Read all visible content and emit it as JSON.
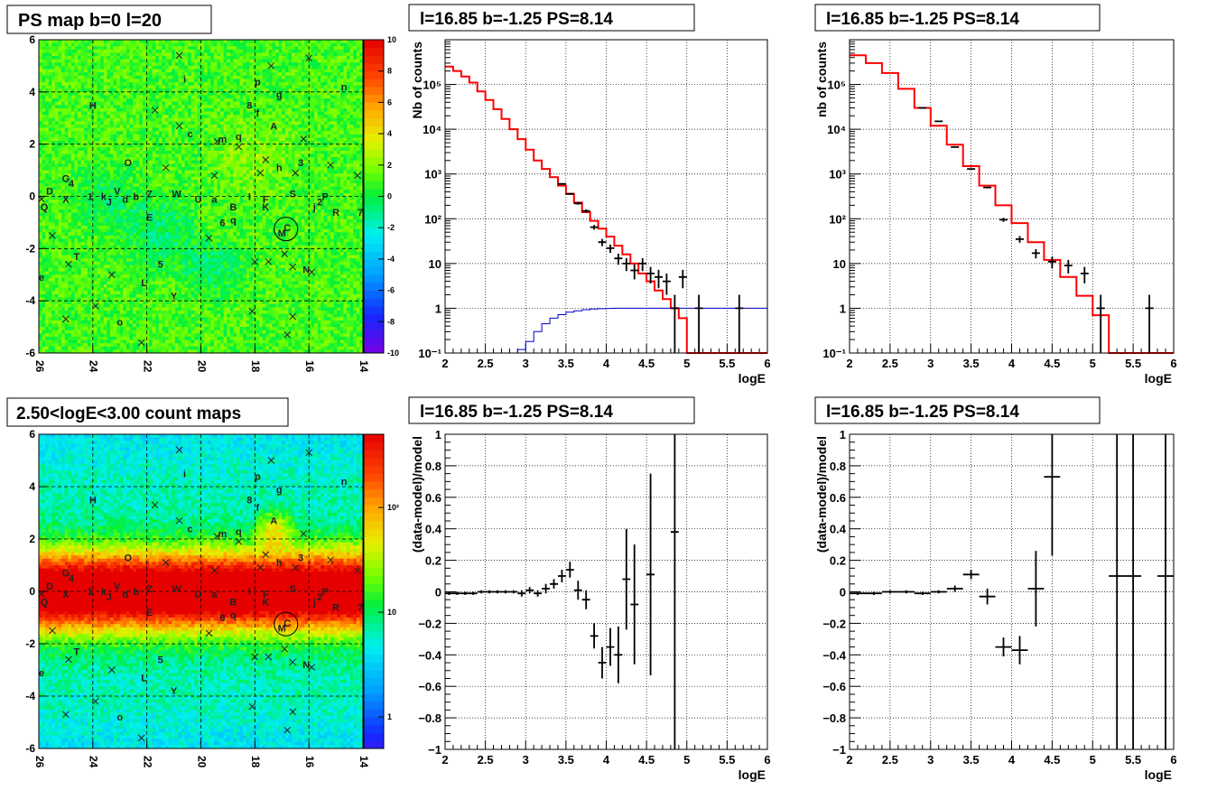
{
  "titles": {
    "map_ps": "PS map b=0 l=20",
    "map_counts": "2.50<logE<3.00 count maps",
    "spec_left": "l=16.85 b=-1.25 PS=8.14",
    "spec_right": "l=16.85 b=-1.25 PS=8.14",
    "res_left": "l=16.85 b=-1.25 PS=8.14",
    "res_right": "l=16.85 b=-1.25 PS=8.14"
  },
  "colors": {
    "model_line": "#ff0000",
    "background_line": "#0000cc",
    "data_points": "#000000",
    "frame": "#000000"
  },
  "chart_data": [
    {
      "id": "map_ps",
      "type": "heatmap",
      "title": "PS map b=0 l=20",
      "xlim": [
        26,
        14
      ],
      "ylim": [
        -6,
        6
      ],
      "x_ticks": [
        "26",
        "24",
        "22",
        "20",
        "18",
        "16",
        "14"
      ],
      "y_ticks": [
        "-6",
        "-4",
        "-2",
        "0",
        "2",
        "4",
        "6"
      ],
      "colorbar_ticks": [
        "-10",
        "-8",
        "-6",
        "-4",
        "-2",
        "0",
        "2",
        "4",
        "6",
        "8",
        "10"
      ],
      "colorbar_range": [
        -10,
        10
      ],
      "sources": [
        {
          "label": "H",
          "x": 24.0,
          "y": 3.5
        },
        {
          "label": "i",
          "x": 20.6,
          "y": 4.5
        },
        {
          "label": "p",
          "x": 17.9,
          "y": 4.4
        },
        {
          "label": "n",
          "x": 14.7,
          "y": 4.2
        },
        {
          "label": "g",
          "x": 17.1,
          "y": 3.9
        },
        {
          "label": "8",
          "x": 18.2,
          "y": 3.5
        },
        {
          "label": "f",
          "x": 17.9,
          "y": 3.2
        },
        {
          "label": "A",
          "x": 17.3,
          "y": 2.7
        },
        {
          "label": "c",
          "x": 20.4,
          "y": 2.4
        },
        {
          "label": "m",
          "x": 19.2,
          "y": 2.2
        },
        {
          "label": "q",
          "x": 18.6,
          "y": 2.3
        },
        {
          "label": "O",
          "x": 22.7,
          "y": 1.3
        },
        {
          "label": "h",
          "x": 17.1,
          "y": 1.1
        },
        {
          "label": "3",
          "x": 16.3,
          "y": 1.3
        },
        {
          "label": "G",
          "x": 25.0,
          "y": 0.7
        },
        {
          "label": "4",
          "x": 24.8,
          "y": 0.5
        },
        {
          "label": "D",
          "x": 25.6,
          "y": 0.2
        },
        {
          "label": "X",
          "x": 25.0,
          "y": -0.1
        },
        {
          "label": "1",
          "x": 24.1,
          "y": 0.0
        },
        {
          "label": "k",
          "x": 23.6,
          "y": 0.0
        },
        {
          "label": "J",
          "x": 23.4,
          "y": -0.2
        },
        {
          "label": "V",
          "x": 23.1,
          "y": 0.2
        },
        {
          "label": "d",
          "x": 22.8,
          "y": -0.1
        },
        {
          "label": "b",
          "x": 22.4,
          "y": 0.0
        },
        {
          "label": "Z",
          "x": 21.9,
          "y": 0.1
        },
        {
          "label": "W",
          "x": 20.9,
          "y": 0.1
        },
        {
          "label": "U",
          "x": 20.1,
          "y": -0.1
        },
        {
          "label": "a",
          "x": 19.5,
          "y": -0.1
        },
        {
          "label": "I",
          "x": 18.2,
          "y": 0.0
        },
        {
          "label": "F",
          "x": 17.6,
          "y": -0.1
        },
        {
          "label": "K",
          "x": 17.6,
          "y": -0.4
        },
        {
          "label": "S",
          "x": 16.6,
          "y": 0.1
        },
        {
          "label": "j",
          "x": 15.8,
          "y": -0.4
        },
        {
          "label": "2",
          "x": 15.6,
          "y": -0.2
        },
        {
          "label": "P",
          "x": 15.4,
          "y": 0.0
        },
        {
          "label": "R",
          "x": 15.0,
          "y": -0.6
        },
        {
          "label": "7",
          "x": 14.1,
          "y": -0.6
        },
        {
          "label": "Q",
          "x": 25.8,
          "y": -0.4
        },
        {
          "label": "B",
          "x": 18.8,
          "y": -0.4
        },
        {
          "label": "E",
          "x": 21.9,
          "y": -0.8
        },
        {
          "label": "6",
          "x": 19.2,
          "y": -1.0
        },
        {
          "label": "q",
          "x": 18.8,
          "y": -0.9
        },
        {
          "label": "C",
          "x": 16.8,
          "y": -1.2
        },
        {
          "label": "M",
          "x": 17.0,
          "y": -1.4
        },
        {
          "label": "T",
          "x": 24.6,
          "y": -2.3
        },
        {
          "label": "5",
          "x": 21.5,
          "y": -2.6
        },
        {
          "label": "N",
          "x": 16.1,
          "y": -2.8
        },
        {
          "label": "e",
          "x": 25.9,
          "y": -3.1
        },
        {
          "label": "L",
          "x": 22.1,
          "y": -3.3
        },
        {
          "label": "Y",
          "x": 21.0,
          "y": -3.8
        },
        {
          "label": "o",
          "x": 23.0,
          "y": -4.8
        }
      ],
      "crosses": [
        [
          20.8,
          5.4
        ],
        [
          17.4,
          5.0
        ],
        [
          16.0,
          5.3
        ],
        [
          21.7,
          3.3
        ],
        [
          20.8,
          2.7
        ],
        [
          19.4,
          2.1
        ],
        [
          18.6,
          1.9
        ],
        [
          17.6,
          1.4
        ],
        [
          16.2,
          2.2
        ],
        [
          15.2,
          1.2
        ],
        [
          14.2,
          0.8
        ],
        [
          21.3,
          1.1
        ],
        [
          19.5,
          0.8
        ],
        [
          17.8,
          0.9
        ],
        [
          16.5,
          0.9
        ],
        [
          25.9,
          -0.1
        ],
        [
          24.9,
          -2.6
        ],
        [
          25.5,
          -1.5
        ],
        [
          23.3,
          -3.0
        ],
        [
          19.7,
          -1.6
        ],
        [
          18.0,
          -2.5
        ],
        [
          17.5,
          -2.5
        ],
        [
          16.9,
          -2.2
        ],
        [
          16.6,
          -2.7
        ],
        [
          15.9,
          -2.9
        ],
        [
          18.1,
          -4.4
        ],
        [
          16.6,
          -4.6
        ],
        [
          16.8,
          -5.3
        ],
        [
          25.0,
          -4.7
        ],
        [
          23.9,
          -4.2
        ],
        [
          22.2,
          -5.6
        ]
      ],
      "circled_source": {
        "x": 16.85,
        "y": -1.25
      }
    },
    {
      "id": "map_counts",
      "type": "heatmap",
      "title": "2.50<logE<3.00 count maps",
      "xlim": [
        26,
        14
      ],
      "ylim": [
        -6,
        6
      ],
      "x_ticks": [
        "26",
        "24",
        "22",
        "20",
        "18",
        "16",
        "14"
      ],
      "y_ticks": [
        "-6",
        "-4",
        "-2",
        "0",
        "2",
        "4",
        "6"
      ],
      "colorbar_scale": "log",
      "colorbar_ticks": [
        "1",
        "10",
        "10²"
      ],
      "colorbar_range": [
        0.5,
        500
      ]
    },
    {
      "id": "spec_left",
      "type": "line",
      "title": "l=16.85 b=-1.25 PS=8.14",
      "xlabel": "logE",
      "ylabel": "Nb of counts",
      "xlim": [
        2,
        6
      ],
      "ylim": [
        0.1,
        1000000
      ],
      "yscale": "log",
      "grid": true,
      "x_ticks": [
        "2",
        "2.5",
        "3",
        "3.5",
        "4",
        "4.5",
        "5",
        "5.5",
        "6"
      ],
      "y_ticks": [
        "10⁻¹",
        "1",
        "10",
        "10²",
        "10³",
        "10⁴",
        "10⁵"
      ],
      "series": [
        {
          "role": "model",
          "kind": "step",
          "bin_width": 0.1,
          "x": [
            2.0,
            2.1,
            2.2,
            2.3,
            2.4,
            2.5,
            2.6,
            2.7,
            2.8,
            2.9,
            3.0,
            3.1,
            3.2,
            3.3,
            3.4,
            3.5,
            3.6,
            3.7,
            3.8,
            3.9,
            4.0,
            4.1,
            4.2,
            4.3,
            4.4,
            4.5,
            4.6,
            4.7,
            4.8,
            4.9,
            5.0,
            5.1,
            5.2,
            5.3,
            5.4,
            5.5,
            5.6,
            5.7,
            5.8,
            5.9
          ],
          "values": [
            250000,
            200000,
            150000,
            110000,
            70000,
            45000,
            28000,
            17000,
            10000,
            6000,
            3500,
            2000,
            1300,
            850,
            550,
            360,
            230,
            140,
            90,
            60,
            40,
            25,
            16,
            10,
            6,
            4,
            2.5,
            1.6,
            1,
            0.6,
            0.1,
            0.1,
            0.1,
            0.1,
            0.1,
            0.1,
            0.1,
            0.1,
            0.1,
            0.1
          ]
        },
        {
          "role": "background",
          "kind": "step",
          "bin_width": 0.1,
          "x": [
            2.8,
            2.9,
            3.0,
            3.1,
            3.2,
            3.3,
            3.4,
            3.5,
            3.6,
            3.7,
            3.8,
            3.9,
            4.0,
            4.1,
            4.2,
            4.3,
            4.4,
            4.5,
            4.6,
            4.7,
            4.8,
            4.9,
            5.0,
            5.1,
            5.2,
            5.3,
            5.4,
            5.5,
            5.6,
            5.7,
            5.8,
            5.9
          ],
          "values": [
            0.1,
            0.12,
            0.18,
            0.3,
            0.45,
            0.6,
            0.72,
            0.82,
            0.88,
            0.93,
            0.96,
            0.98,
            0.99,
            1,
            1,
            1,
            1,
            1,
            1,
            1,
            1,
            1,
            1,
            1,
            1,
            1,
            1,
            1,
            1,
            1,
            1,
            1
          ]
        },
        {
          "role": "data",
          "kind": "points",
          "x": [
            3.45,
            3.55,
            3.65,
            3.75,
            3.85,
            3.95,
            4.05,
            4.15,
            4.25,
            4.35,
            4.45,
            4.55,
            4.65,
            4.75,
            4.85,
            4.95,
            5.15,
            5.65
          ],
          "values": [
            600,
            360,
            220,
            150,
            65,
            30,
            22,
            13,
            10,
            7,
            10,
            6,
            5,
            4,
            1,
            5,
            1,
            1
          ],
          "err": [
            25,
            19,
            15,
            12,
            8,
            5.5,
            4.7,
            3.6,
            3.2,
            2.6,
            3.2,
            2.4,
            2.2,
            2,
            1,
            2.2,
            1,
            1
          ]
        }
      ]
    },
    {
      "id": "spec_right",
      "type": "line",
      "title": "l=16.85 b=-1.25 PS=8.14",
      "xlabel": "logE",
      "ylabel": "nb of counts",
      "xlim": [
        2,
        6
      ],
      "ylim": [
        0.1,
        1000000
      ],
      "yscale": "log",
      "grid": true,
      "x_ticks": [
        "2",
        "2.5",
        "3",
        "3.5",
        "4",
        "4.5",
        "5",
        "5.5",
        "6"
      ],
      "y_ticks": [
        "10⁻¹",
        "1",
        "10",
        "10²",
        "10³",
        "10⁴",
        "10⁵"
      ],
      "series": [
        {
          "role": "model",
          "kind": "step",
          "bin_width": 0.2,
          "x": [
            2.0,
            2.2,
            2.4,
            2.6,
            2.8,
            3.0,
            3.2,
            3.4,
            3.6,
            3.8,
            4.0,
            4.2,
            4.4,
            4.6,
            4.8,
            5.0,
            5.2,
            5.4,
            5.6,
            5.8
          ],
          "values": [
            450000,
            300000,
            180000,
            80000,
            30000,
            12000,
            4500,
            1500,
            550,
            200,
            80,
            30,
            12,
            5,
            1.9,
            0.7,
            0.1,
            0.1,
            0.1,
            0.1
          ]
        },
        {
          "role": "data",
          "kind": "points",
          "x": [
            2.9,
            3.1,
            3.3,
            3.5,
            3.7,
            3.9,
            4.1,
            4.3,
            4.5,
            4.7,
            4.9,
            5.1,
            5.7
          ],
          "values": [
            30000,
            15000,
            4000,
            1300,
            500,
            95,
            35,
            17,
            11,
            9,
            6,
            1,
            1
          ],
          "err": [
            170,
            120,
            63,
            36,
            22,
            10,
            6,
            4,
            3.3,
            3,
            2.4,
            1,
            1
          ]
        }
      ]
    },
    {
      "id": "res_left",
      "type": "scatter",
      "title": "l=16.85 b=-1.25 PS=8.14",
      "xlabel": "logE",
      "ylabel": "(data-model)/model",
      "xlim": [
        2,
        6
      ],
      "ylim": [
        -1,
        1
      ],
      "grid": true,
      "x_ticks": [
        "2",
        "2.5",
        "3",
        "3.5",
        "4",
        "4.5",
        "5",
        "5.5",
        "6"
      ],
      "y_ticks": [
        "−1",
        "−0.8",
        "−0.6",
        "−0.4",
        "−0.2",
        "0",
        "0.2",
        "0.4",
        "0.6",
        "0.8",
        "1"
      ],
      "series": [
        {
          "role": "residual",
          "xerr": 0.05,
          "x": [
            2.05,
            2.15,
            2.25,
            2.35,
            2.45,
            2.55,
            2.65,
            2.75,
            2.85,
            2.95,
            3.05,
            3.15,
            3.25,
            3.35,
            3.45,
            3.55,
            3.65,
            3.75,
            3.85,
            3.95,
            4.05,
            4.15,
            4.25,
            4.35,
            4.55,
            4.85
          ],
          "values": [
            -0.01,
            -0.01,
            -0.01,
            -0.01,
            0,
            0,
            0,
            0,
            0,
            -0.01,
            0.01,
            -0.01,
            0.02,
            0.05,
            0.1,
            0.14,
            0.01,
            -0.05,
            -0.28,
            -0.45,
            -0.35,
            -0.4,
            0.08,
            -0.08,
            0.11,
            0.38
          ],
          "err": [
            0.01,
            0.01,
            0.01,
            0.01,
            0.01,
            0.01,
            0.01,
            0.01,
            0.01,
            0.02,
            0.02,
            0.02,
            0.03,
            0.03,
            0.04,
            0.05,
            0.06,
            0.06,
            0.08,
            0.1,
            0.12,
            0.18,
            0.32,
            0.38,
            0.64,
            1.5
          ]
        }
      ]
    },
    {
      "id": "res_right",
      "type": "scatter",
      "title": "l=16.85 b=-1.25 PS=8.14",
      "xlabel": "logE",
      "ylabel": "(data-model)/model",
      "xlim": [
        2,
        6
      ],
      "ylim": [
        -1,
        1
      ],
      "grid": true,
      "x_ticks": [
        "2",
        "2.5",
        "3",
        "3.5",
        "4",
        "4.5",
        "5",
        "5.5",
        "6"
      ],
      "y_ticks": [
        "−1",
        "−0.8",
        "−0.6",
        "−0.4",
        "−0.2",
        "0",
        "0.2",
        "0.4",
        "0.6",
        "0.8",
        "1"
      ],
      "series": [
        {
          "role": "residual",
          "xerr": 0.1,
          "x": [
            2.1,
            2.3,
            2.5,
            2.7,
            2.9,
            3.1,
            3.3,
            3.5,
            3.7,
            3.9,
            4.1,
            4.3,
            4.5,
            5.3,
            5.5,
            5.9
          ],
          "values": [
            -0.01,
            -0.01,
            0,
            0,
            -0.01,
            0,
            0.02,
            0.11,
            -0.03,
            -0.35,
            -0.37,
            0.02,
            0.73,
            0.1,
            0.1,
            0.1
          ],
          "err": [
            0.01,
            0.01,
            0.01,
            0.01,
            0.01,
            0.01,
            0.02,
            0.03,
            0.05,
            0.06,
            0.09,
            0.24,
            0.5,
            2,
            2,
            2
          ]
        }
      ]
    }
  ]
}
